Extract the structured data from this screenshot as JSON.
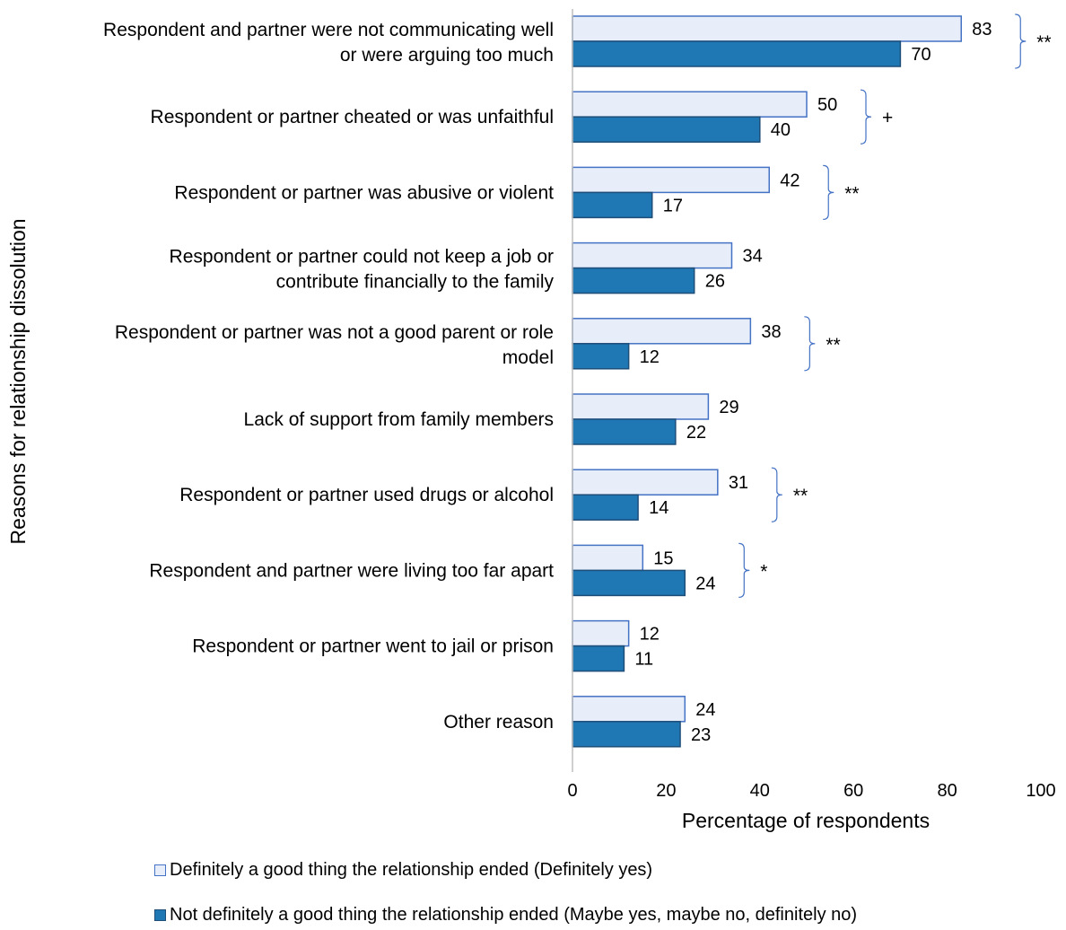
{
  "chart_data": {
    "type": "bar",
    "orientation": "horizontal",
    "xlabel": "Percentage of respondents",
    "ylabel": "Reasons for relationship dissolution",
    "xlim": [
      0,
      100
    ],
    "xticks": [
      "0",
      "20",
      "40",
      "60",
      "80",
      "100"
    ],
    "grid": false,
    "legend_position": "bottom",
    "categories": [
      [
        "Respondent and partner were not communicating well",
        "or were arguing too much"
      ],
      [
        "Respondent or partner cheated or was unfaithful"
      ],
      [
        "Respondent or partner was abusive or violent"
      ],
      [
        "Respondent or partner could not keep a job or",
        "contribute financially to the family"
      ],
      [
        "Respondent or partner was not a good parent or role",
        "model"
      ],
      [
        "Lack of support from family members"
      ],
      [
        "Respondent or partner used drugs or alcohol"
      ],
      [
        "Respondent and partner were living too far apart"
      ],
      [
        "Respondent or partner went to jail or prison"
      ],
      [
        "Other reason"
      ]
    ],
    "series": [
      {
        "name": "Definitely a good thing the relationship ended (Definitely yes)",
        "values": [
          83,
          50,
          42,
          34,
          38,
          29,
          31,
          15,
          12,
          24
        ],
        "fill": "#e8eef9",
        "stroke": "#4472c4"
      },
      {
        "name": "Not definitely a good thing the relationship ended (Maybe yes, maybe no, definitely no)",
        "values": [
          70,
          40,
          17,
          26,
          12,
          22,
          14,
          24,
          11,
          23
        ],
        "fill": "#1f77b4",
        "stroke": "#1f4e79"
      }
    ],
    "significance": [
      "**",
      "+",
      "**",
      "",
      "**",
      "",
      "**",
      "*",
      "",
      ""
    ]
  },
  "colors": {
    "axis": "#bfbfbf",
    "bracket": "#4472c4"
  }
}
